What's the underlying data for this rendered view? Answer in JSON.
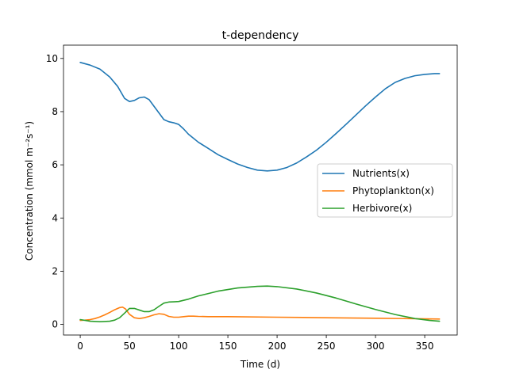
{
  "chart_data": {
    "type": "line",
    "title": "t-dependency",
    "xlabel": "Time (d)",
    "ylabel": "Concentration (mmol m⁻²s⁻¹)",
    "xlim": [
      -17,
      383
    ],
    "ylim": [
      -0.4,
      10.5
    ],
    "xticks": [
      0,
      50,
      100,
      150,
      200,
      250,
      300,
      350
    ],
    "yticks": [
      0,
      2,
      4,
      6,
      8,
      10
    ],
    "grid": false,
    "legend_position": "center-right",
    "series": [
      {
        "name": "Nutrients(x)",
        "color": "#1f77b4",
        "x": [
          0,
          10,
          20,
          30,
          38,
          45,
          50,
          55,
          60,
          65,
          70,
          75,
          80,
          85,
          90,
          95,
          100,
          105,
          110,
          115,
          120,
          130,
          140,
          150,
          160,
          170,
          180,
          190,
          200,
          210,
          220,
          230,
          240,
          250,
          260,
          270,
          280,
          290,
          300,
          310,
          320,
          330,
          340,
          350,
          360,
          365
        ],
        "y": [
          9.85,
          9.75,
          9.6,
          9.3,
          8.95,
          8.5,
          8.38,
          8.42,
          8.52,
          8.55,
          8.45,
          8.2,
          7.95,
          7.7,
          7.62,
          7.58,
          7.52,
          7.35,
          7.15,
          7.0,
          6.85,
          6.62,
          6.38,
          6.2,
          6.03,
          5.9,
          5.8,
          5.77,
          5.8,
          5.9,
          6.07,
          6.3,
          6.55,
          6.85,
          7.18,
          7.52,
          7.87,
          8.22,
          8.55,
          8.86,
          9.1,
          9.25,
          9.35,
          9.4,
          9.43,
          9.43
        ]
      },
      {
        "name": "Phytoplankton(x)",
        "color": "#ff7f0e",
        "x": [
          0,
          5,
          10,
          15,
          20,
          25,
          30,
          35,
          40,
          43,
          46,
          50,
          55,
          60,
          65,
          70,
          75,
          80,
          85,
          90,
          95,
          100,
          105,
          110,
          115,
          120,
          130,
          150,
          200,
          250,
          300,
          350,
          365
        ],
        "y": [
          0.15,
          0.16,
          0.18,
          0.22,
          0.28,
          0.36,
          0.45,
          0.55,
          0.63,
          0.65,
          0.58,
          0.38,
          0.25,
          0.22,
          0.25,
          0.3,
          0.36,
          0.4,
          0.38,
          0.3,
          0.27,
          0.27,
          0.29,
          0.31,
          0.31,
          0.3,
          0.29,
          0.29,
          0.27,
          0.25,
          0.23,
          0.21,
          0.2
        ]
      },
      {
        "name": "Herbivore(x)",
        "color": "#2ca02c",
        "x": [
          0,
          10,
          20,
          30,
          35,
          40,
          45,
          50,
          55,
          60,
          65,
          70,
          75,
          80,
          85,
          90,
          95,
          100,
          110,
          120,
          140,
          160,
          180,
          190,
          200,
          220,
          240,
          260,
          280,
          300,
          320,
          340,
          355,
          365
        ],
        "y": [
          0.18,
          0.12,
          0.1,
          0.12,
          0.16,
          0.25,
          0.42,
          0.6,
          0.6,
          0.54,
          0.48,
          0.48,
          0.55,
          0.68,
          0.8,
          0.84,
          0.85,
          0.86,
          0.95,
          1.07,
          1.25,
          1.37,
          1.43,
          1.44,
          1.42,
          1.33,
          1.18,
          0.99,
          0.77,
          0.56,
          0.37,
          0.22,
          0.15,
          0.12
        ]
      }
    ]
  }
}
